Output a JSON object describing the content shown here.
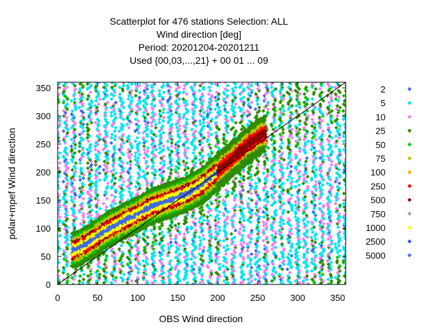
{
  "chart_data": {
    "type": "scatter",
    "title_lines": [
      "Scatterplot for  476 stations Selection: ALL",
      "Wind direction [deg]",
      "Period: 20201204-20201211",
      "Used {00,03,...,21} + 00 01 ... 09"
    ],
    "xlabel": "OBS Wind direction",
    "ylabel": "polar+mpef Wind direction",
    "xlim": [
      0,
      360
    ],
    "ylim": [
      0,
      360
    ],
    "x_ticks": [
      0,
      50,
      100,
      150,
      200,
      250,
      300,
      350
    ],
    "y_ticks": [
      0,
      50,
      100,
      150,
      200,
      250,
      300,
      350
    ],
    "grid": true,
    "diagonal_line": true,
    "legend_placement": "right",
    "legend": [
      {
        "label": "2",
        "color": "#4169e1"
      },
      {
        "label": "5",
        "color": "#00e5ee"
      },
      {
        "label": "10",
        "color": "#ee82ee"
      },
      {
        "label": "25",
        "color": "#2e8b00"
      },
      {
        "label": "50",
        "color": "#00c800"
      },
      {
        "label": "75",
        "color": "#c0c000"
      },
      {
        "label": "100",
        "color": "#ffa500"
      },
      {
        "label": "250",
        "color": "#ff0000"
      },
      {
        "label": "500",
        "color": "#8b0000"
      },
      {
        "label": "750",
        "color": "#a0a0a0"
      },
      {
        "label": "1000",
        "color": "#ffff00"
      },
      {
        "label": "2500",
        "color": "#3050d0"
      },
      {
        "label": "5000",
        "color": "#4169e1"
      }
    ],
    "x_columns_deg": [
      0,
      10,
      20,
      30,
      40,
      50,
      60,
      70,
      80,
      90,
      100,
      110,
      120,
      130,
      140,
      150,
      160,
      170,
      180,
      190,
      200,
      210,
      220,
      230,
      240,
      250,
      260,
      270,
      280,
      290,
      300,
      310,
      320,
      330,
      340,
      350,
      360
    ],
    "density_band": {
      "description": "points concentrate around y = x; counts peak between 60 and 180 deg",
      "center_points": [
        [
          20,
          60
        ],
        [
          40,
          75
        ],
        [
          60,
          95
        ],
        [
          80,
          110
        ],
        [
          100,
          125
        ],
        [
          120,
          140
        ],
        [
          140,
          150
        ],
        [
          160,
          160
        ],
        [
          180,
          175
        ],
        [
          200,
          200
        ],
        [
          220,
          225
        ],
        [
          240,
          250
        ],
        [
          260,
          270
        ]
      ]
    }
  }
}
